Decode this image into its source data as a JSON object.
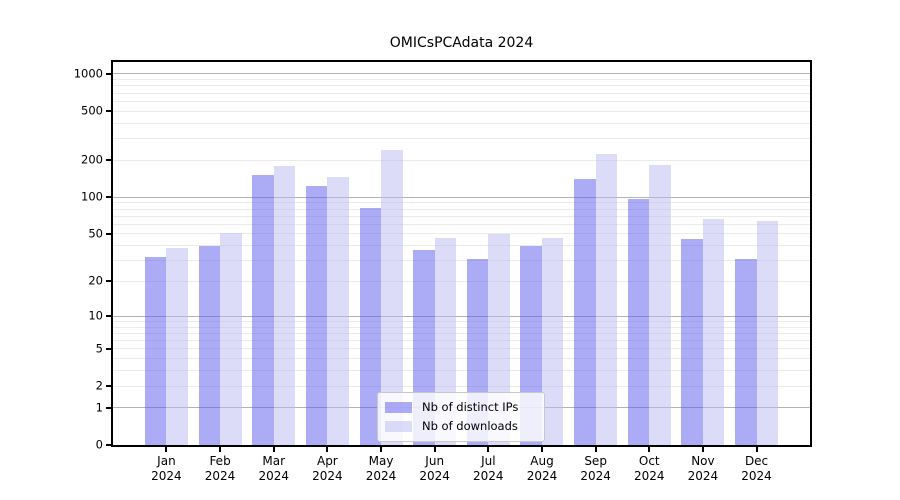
{
  "chart_data": {
    "type": "bar",
    "title": "OMICsPCAdata 2024",
    "year": "2024",
    "categories": [
      "Jan",
      "Feb",
      "Mar",
      "Apr",
      "May",
      "Jun",
      "Jul",
      "Aug",
      "Sep",
      "Oct",
      "Nov",
      "Dec"
    ],
    "series": [
      {
        "name": "Nb of distinct IPs",
        "color": "rgba(90,90,238,0.5)",
        "values": [
          32,
          40,
          153,
          124,
          81,
          37,
          31,
          40,
          140,
          97,
          45,
          31
        ]
      },
      {
        "name": "Nb of downloads",
        "color": "rgba(185,185,242,0.5)",
        "values": [
          38,
          51,
          181,
          147,
          240,
          46,
          50,
          46,
          225,
          184,
          66,
          64
        ]
      }
    ],
    "xlabel": "",
    "ylabel": "",
    "y_axis": {
      "scale": "log1p",
      "ylim": [
        0,
        1250
      ],
      "ticks": [
        1000,
        500,
        200,
        100,
        50,
        20,
        10,
        5,
        2,
        1,
        0
      ],
      "major_gridlines": [
        1,
        10,
        100,
        1000
      ],
      "minor_gridlines": [
        2,
        3,
        4,
        5,
        6,
        7,
        8,
        9,
        20,
        30,
        40,
        50,
        60,
        70,
        80,
        90,
        200,
        300,
        400,
        500,
        600,
        700,
        800,
        900
      ]
    },
    "legend": {
      "position": "inside-bottom-center"
    },
    "colors": {
      "major_grid": "#b3b3b3",
      "minor_grid": "#ebebeb",
      "frame": "#000000"
    },
    "grid": "on"
  }
}
